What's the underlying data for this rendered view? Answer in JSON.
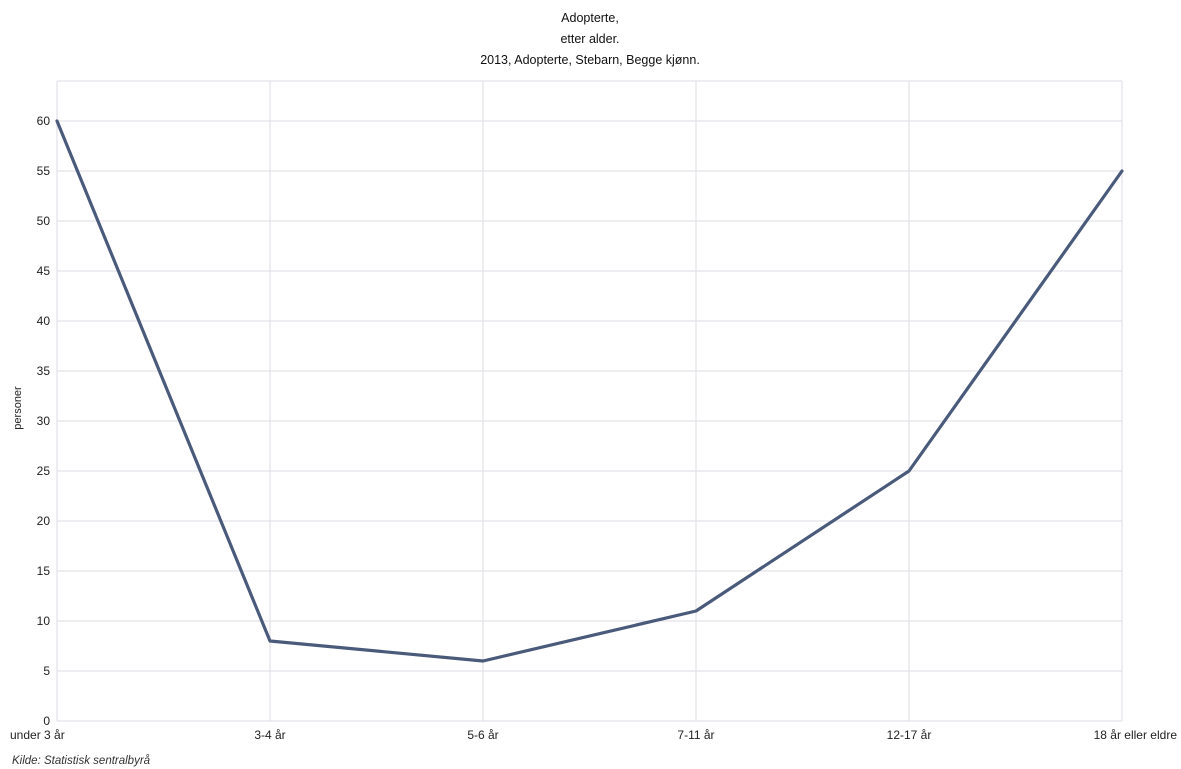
{
  "chart_data": {
    "type": "line",
    "title_lines": [
      "Adopterte,",
      "etter alder.",
      "2013, Adopterte, Stebarn, Begge kjønn."
    ],
    "xlabel": "",
    "ylabel": "personer",
    "categories": [
      "under 3 år",
      "3-4 år",
      "5-6 år",
      "7-11 år",
      "12-17 år",
      "18 år eller eldre"
    ],
    "series": [
      {
        "values": [
          60,
          8,
          6,
          11,
          25,
          55
        ]
      }
    ],
    "yticks": [
      0,
      5,
      10,
      15,
      20,
      25,
      30,
      35,
      40,
      45,
      50,
      55,
      60
    ],
    "ylim": [
      0,
      64
    ],
    "grid": true,
    "legend": "none",
    "source": "Kilde: Statistisk sentralbyrå",
    "colors": {
      "series": "#4a5a7a",
      "grid": "#dcdce4"
    }
  }
}
